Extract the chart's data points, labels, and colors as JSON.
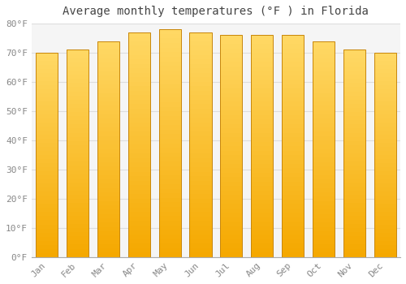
{
  "title": "Average monthly temperatures (°F ) in Florida",
  "months": [
    "Jan",
    "Feb",
    "Mar",
    "Apr",
    "May",
    "Jun",
    "Jul",
    "Aug",
    "Sep",
    "Oct",
    "Nov",
    "Dec"
  ],
  "values": [
    70,
    71,
    74,
    77,
    78,
    77,
    76,
    76,
    76,
    74,
    71,
    70
  ],
  "bar_color_bottom": "#F5A800",
  "bar_color_top": "#FFD966",
  "bar_edge_color": "#C8860A",
  "background_color": "#FFFFFF",
  "plot_bg_color": "#F5F5F5",
  "grid_color": "#DDDDDD",
  "ylim": [
    0,
    80
  ],
  "yticks": [
    0,
    10,
    20,
    30,
    40,
    50,
    60,
    70,
    80
  ],
  "ylabel_suffix": "°F",
  "title_fontsize": 10,
  "tick_fontsize": 8,
  "tick_color": "#888888"
}
